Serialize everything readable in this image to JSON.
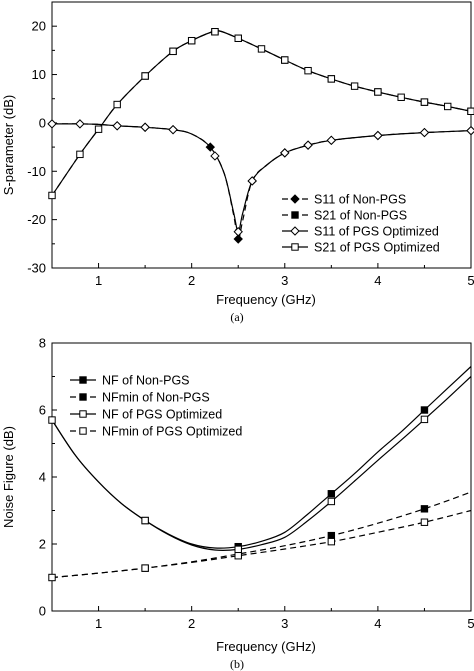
{
  "chart_data": [
    {
      "panel_label": "(a)",
      "type": "line",
      "xlabel": "Frequency (GHz)",
      "ylabel": "S-parameter (dB)",
      "xlim": [
        0.5,
        5
      ],
      "ylim": [
        -30,
        25
      ],
      "xticks": [
        1,
        2,
        3,
        4,
        5
      ],
      "yticks": [
        -30,
        -20,
        -10,
        0,
        10,
        20
      ],
      "xtick_labels": [
        "1",
        "2",
        "3",
        "4",
        "5"
      ],
      "ytick_labels": [
        "-30",
        "-20",
        "-10",
        "0",
        "10",
        "20"
      ],
      "grid": false,
      "legend_position": "bottom-right",
      "series": [
        {
          "name": "S11 of Non-PGS",
          "line": "dashed",
          "marker": "filled-diamond",
          "x": [
            0.5,
            0.8,
            1.0,
            1.2,
            1.5,
            1.8,
            2.0,
            2.2,
            2.35,
            2.45,
            2.5,
            2.55,
            2.65,
            2.8,
            3.0,
            3.25,
            3.5,
            4.0,
            4.5,
            5.0
          ],
          "y": [
            -0.2,
            -0.2,
            -0.3,
            -0.6,
            -0.9,
            -1.4,
            -2.3,
            -5.0,
            -10.5,
            -19.0,
            -24.0,
            -20.0,
            -12.0,
            -8.8,
            -6.2,
            -4.6,
            -3.6,
            -2.6,
            -2.0,
            -1.6
          ],
          "markers_at": [
            1.2,
            1.5,
            1.8,
            2.2,
            2.5,
            2.65,
            3.0,
            3.25,
            3.5,
            4.0,
            4.5,
            5.0
          ]
        },
        {
          "name": "S21 of Non-PGS",
          "line": "dashed",
          "marker": "filled-square",
          "x": [
            0.5,
            0.8,
            1.0,
            1.2,
            1.5,
            1.8,
            2.0,
            2.2,
            2.3,
            2.5,
            2.75,
            3.0,
            3.25,
            3.5,
            3.75,
            4.0,
            4.25,
            4.5,
            4.75,
            5.0
          ],
          "y": [
            -15.0,
            -6.5,
            -1.3,
            3.8,
            9.7,
            14.8,
            17.0,
            18.7,
            19.0,
            17.5,
            15.3,
            13.0,
            10.8,
            9.1,
            7.6,
            6.4,
            5.3,
            4.3,
            3.4,
            2.4
          ],
          "markers_at": [
            1.5,
            1.8,
            2.0,
            2.25,
            2.5,
            3.0,
            3.5,
            4.0,
            4.5,
            5.0
          ]
        },
        {
          "name": "S11 of PGS Optimized",
          "line": "solid",
          "marker": "open-diamond",
          "x": [
            0.5,
            0.8,
            1.0,
            1.2,
            1.5,
            1.8,
            2.0,
            2.2,
            2.35,
            2.45,
            2.5,
            2.55,
            2.65,
            2.8,
            3.0,
            3.25,
            3.5,
            4.0,
            4.5,
            5.0
          ],
          "y": [
            -0.2,
            -0.2,
            -0.3,
            -0.6,
            -0.9,
            -1.4,
            -2.3,
            -5.0,
            -10.5,
            -18.5,
            -22.5,
            -18.5,
            -12.0,
            -8.8,
            -6.2,
            -4.6,
            -3.6,
            -2.6,
            -2.0,
            -1.6
          ],
          "markers_at": [
            0.5,
            0.8,
            1.2,
            1.5,
            1.8,
            2.25,
            2.5,
            2.65,
            3.0,
            3.25,
            3.5,
            4.0,
            4.5,
            5.0
          ]
        },
        {
          "name": "S21 of PGS Optimized",
          "line": "solid",
          "marker": "open-square",
          "x": [
            0.5,
            0.8,
            1.0,
            1.2,
            1.5,
            1.8,
            2.0,
            2.2,
            2.3,
            2.5,
            2.75,
            3.0,
            3.25,
            3.5,
            3.75,
            4.0,
            4.25,
            4.5,
            4.75,
            5.0
          ],
          "y": [
            -15.0,
            -6.5,
            -1.3,
            3.8,
            9.7,
            14.8,
            17.0,
            18.7,
            19.0,
            17.5,
            15.3,
            13.0,
            10.8,
            9.1,
            7.6,
            6.4,
            5.3,
            4.3,
            3.4,
            2.4
          ],
          "markers_at": [
            0.5,
            0.8,
            1.0,
            1.2,
            1.5,
            1.8,
            2.0,
            2.25,
            2.5,
            2.75,
            3.0,
            3.25,
            3.5,
            3.75,
            4.0,
            4.25,
            4.5,
            4.75,
            5.0
          ]
        }
      ]
    },
    {
      "panel_label": "(b)",
      "type": "line",
      "xlabel": "Frequency (GHz)",
      "ylabel": "Noise Figure (dB)",
      "xlim": [
        0.5,
        5
      ],
      "ylim": [
        0,
        8
      ],
      "xticks": [
        1,
        2,
        3,
        4,
        5
      ],
      "yticks": [
        0,
        2,
        4,
        6,
        8
      ],
      "xtick_labels": [
        "1",
        "2",
        "3",
        "4",
        "5"
      ],
      "ytick_labels": [
        "0",
        "2",
        "4",
        "6",
        "8"
      ],
      "grid": false,
      "legend_position": "top-left",
      "series": [
        {
          "name": "NF of Non-PGS",
          "line": "solid",
          "marker": "filled-square",
          "x": [
            0.5,
            0.75,
            1.0,
            1.25,
            1.5,
            1.75,
            2.0,
            2.25,
            2.5,
            2.75,
            3.0,
            3.25,
            3.5,
            3.75,
            4.0,
            4.25,
            4.5,
            4.75,
            5.0
          ],
          "y": [
            5.7,
            4.65,
            3.85,
            3.2,
            2.7,
            2.3,
            2.0,
            1.88,
            1.92,
            2.08,
            2.35,
            2.9,
            3.5,
            4.1,
            4.75,
            5.35,
            6.0,
            6.65,
            7.3
          ],
          "markers_at": [
            1.5,
            2.5,
            3.5,
            4.5
          ]
        },
        {
          "name": "NFmin of Non-PGS",
          "line": "dashed",
          "marker": "filled-square",
          "x": [
            0.5,
            1.0,
            1.5,
            2.0,
            2.5,
            3.0,
            3.5,
            4.0,
            4.5,
            5.0
          ],
          "y": [
            1.0,
            1.13,
            1.28,
            1.47,
            1.7,
            1.95,
            2.25,
            2.62,
            3.05,
            3.55
          ],
          "markers_at": [
            1.5,
            2.5,
            3.5,
            4.5
          ]
        },
        {
          "name": "NF of PGS Optimized",
          "line": "solid",
          "marker": "open-square",
          "x": [
            0.5,
            0.75,
            1.0,
            1.25,
            1.5,
            1.75,
            2.0,
            2.25,
            2.5,
            2.75,
            3.0,
            3.25,
            3.5,
            3.75,
            4.0,
            4.25,
            4.5,
            4.75,
            5.0
          ],
          "y": [
            5.7,
            4.65,
            3.85,
            3.2,
            2.7,
            2.28,
            1.97,
            1.82,
            1.84,
            1.98,
            2.2,
            2.7,
            3.27,
            3.88,
            4.5,
            5.1,
            5.72,
            6.35,
            7.0
          ],
          "markers_at": [
            0.5,
            1.5,
            2.5,
            3.5,
            4.5
          ]
        },
        {
          "name": "NFmin of PGS Optimized",
          "line": "dashed",
          "marker": "open-square",
          "x": [
            0.5,
            1.0,
            1.5,
            2.0,
            2.5,
            3.0,
            3.5,
            4.0,
            4.5,
            5.0
          ],
          "y": [
            1.0,
            1.13,
            1.28,
            1.45,
            1.65,
            1.85,
            2.07,
            2.35,
            2.65,
            3.0
          ],
          "markers_at": [
            0.5,
            1.5,
            2.5,
            3.5,
            4.5
          ]
        }
      ]
    }
  ]
}
